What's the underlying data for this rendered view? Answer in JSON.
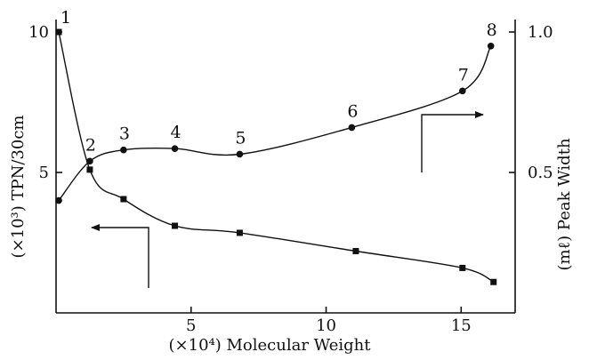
{
  "chart_data": {
    "type": "scatter",
    "title": "",
    "xlabel": "(×10⁴)  Molecular Weight",
    "ylabel_left": "(×10³)  TPN/30cm",
    "ylabel_right": "(mℓ)  Peak Width",
    "xlim": [
      0,
      17
    ],
    "ylim_left": [
      0,
      10
    ],
    "ylim_right": [
      0,
      1.0
    ],
    "x_ticks": [
      {
        "value": 5,
        "label": "5"
      },
      {
        "value": 10,
        "label": "10"
      },
      {
        "value": 15,
        "label": "15"
      }
    ],
    "y_ticks_left": [
      {
        "value": 5,
        "label": "5"
      },
      {
        "value": 10,
        "label": "10"
      }
    ],
    "y_ticks_right": [
      {
        "value": 0.5,
        "label": "0.5"
      },
      {
        "value": 1.0,
        "label": "1.0"
      }
    ],
    "grid": false,
    "series": [
      {
        "name": "",
        "axis": "right",
        "marker": "circle",
        "points": [
          {
            "x": 0.1,
            "y": 0.4,
            "label": ""
          },
          {
            "x": 1.25,
            "y": 0.54,
            "label": "2"
          },
          {
            "x": 2.5,
            "y": 0.58,
            "label": "3"
          },
          {
            "x": 4.4,
            "y": 0.585,
            "label": "4"
          },
          {
            "x": 6.8,
            "y": 0.565,
            "label": "5"
          },
          {
            "x": 10.95,
            "y": 0.66,
            "label": "6"
          },
          {
            "x": 15.05,
            "y": 0.79,
            "label": "7"
          },
          {
            "x": 16.1,
            "y": 0.95,
            "label": "8"
          }
        ]
      },
      {
        "name": "",
        "axis": "left",
        "marker": "square",
        "points": [
          {
            "x": 0.1,
            "y": 10.0,
            "label": "1"
          },
          {
            "x": 1.25,
            "y": 5.1,
            "label": ""
          },
          {
            "x": 2.5,
            "y": 4.05,
            "label": ""
          },
          {
            "x": 4.4,
            "y": 3.1,
            "label": ""
          },
          {
            "x": 6.8,
            "y": 2.85,
            "label": ""
          },
          {
            "x": 11.1,
            "y": 2.2,
            "label": ""
          },
          {
            "x": 15.05,
            "y": 1.6,
            "label": ""
          },
          {
            "x": 16.2,
            "y": 1.1,
            "label": ""
          }
        ]
      }
    ],
    "annotations": [
      {
        "type": "axis-pointer-arrow",
        "points_to": "left-axis",
        "near_series": 1
      },
      {
        "type": "axis-pointer-arrow",
        "points_to": "right-axis",
        "near_series": 0
      }
    ]
  }
}
